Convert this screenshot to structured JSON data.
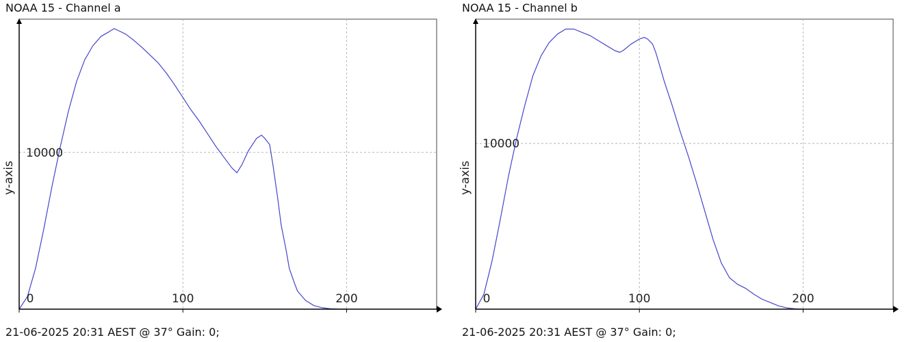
{
  "panels": [
    {
      "title": "NOAA 15 - Channel a",
      "footer": "21-06-2025 20:31 AEST @ 37° Gain: 0;",
      "colors": {
        "line": "#4444cc",
        "grid": "#b5b5b5",
        "axis": "#000000"
      }
    },
    {
      "title": "NOAA 15 - Channel b",
      "footer": "21-06-2025 20:31 AEST @ 37° Gain: 0;",
      "colors": {
        "line": "#4444cc",
        "grid": "#b5b5b5",
        "axis": "#000000"
      }
    }
  ],
  "chart_data": [
    {
      "type": "line",
      "title": "NOAA 15 - Channel a",
      "xlabel": "",
      "ylabel": "y-axis",
      "xlim": [
        0,
        255
      ],
      "ylim": [
        0,
        18500
      ],
      "xticks": [
        0,
        100,
        200
      ],
      "yticks": [
        10000
      ],
      "grid": true,
      "series": [
        {
          "x": [
            0,
            5,
            10,
            15,
            20,
            25,
            30,
            35,
            40,
            45,
            50,
            55,
            58,
            60,
            65,
            70,
            75,
            80,
            85,
            90,
            95,
            100,
            105,
            110,
            115,
            120,
            125,
            130,
            133,
            136,
            140,
            145,
            148,
            150,
            153,
            155,
            158,
            160,
            163,
            165,
            168,
            170,
            175,
            180,
            185,
            190,
            195,
            200
          ],
          "y": [
            0,
            800,
            2600,
            5100,
            7800,
            10300,
            12600,
            14500,
            15900,
            16800,
            17400,
            17700,
            17900,
            17800,
            17550,
            17150,
            16700,
            16200,
            15700,
            15050,
            14300,
            13500,
            12700,
            12000,
            11200,
            10400,
            9700,
            9000,
            8700,
            9200,
            10100,
            10900,
            11100,
            10900,
            10500,
            9200,
            7000,
            5400,
            3800,
            2600,
            1700,
            1150,
            550,
            230,
            90,
            25,
            5,
            0
          ]
        }
      ]
    },
    {
      "type": "line",
      "title": "NOAA 15 - Channel b",
      "xlabel": "",
      "ylabel": "y-axis",
      "xlim": [
        0,
        255
      ],
      "ylim": [
        0,
        17500
      ],
      "xticks": [
        0,
        100,
        200
      ],
      "yticks": [
        10000
      ],
      "grid": true,
      "series": [
        {
          "x": [
            0,
            5,
            10,
            15,
            20,
            25,
            30,
            35,
            40,
            45,
            50,
            55,
            60,
            65,
            70,
            75,
            80,
            85,
            88,
            90,
            95,
            100,
            103,
            105,
            108,
            110,
            113,
            115,
            120,
            125,
            130,
            135,
            140,
            145,
            150,
            155,
            160,
            165,
            170,
            175,
            180,
            185,
            190,
            195,
            200
          ],
          "y": [
            0,
            900,
            2900,
            5400,
            8000,
            10300,
            12300,
            14100,
            15300,
            16100,
            16600,
            16900,
            16900,
            16700,
            16500,
            16200,
            15900,
            15600,
            15500,
            15600,
            16000,
            16300,
            16400,
            16300,
            16000,
            15500,
            14500,
            13800,
            12300,
            10700,
            9200,
            7600,
            5900,
            4200,
            2800,
            1900,
            1500,
            1250,
            900,
            600,
            400,
            200,
            80,
            20,
            0
          ]
        }
      ]
    }
  ]
}
